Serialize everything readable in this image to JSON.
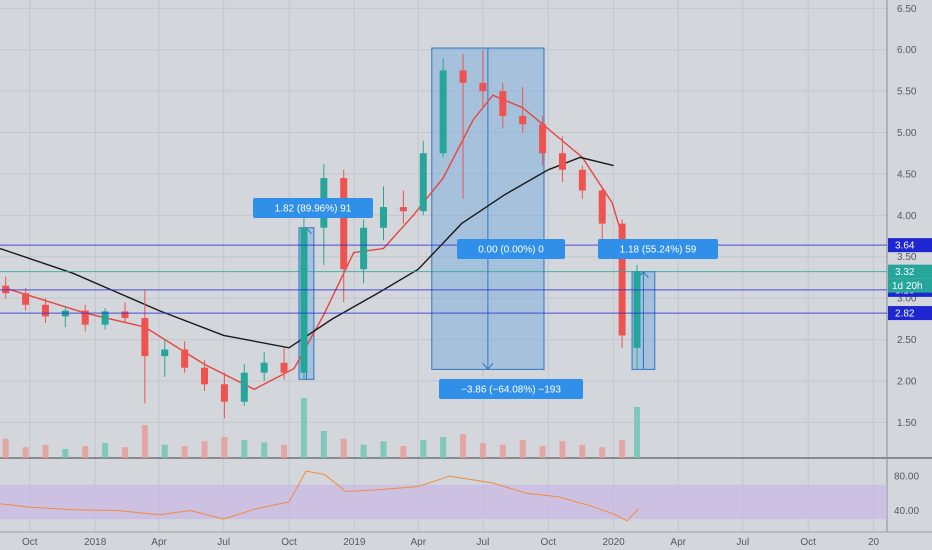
{
  "chart_data": [
    {
      "type": "candlestick",
      "title": "",
      "x": {
        "ticks": [
          "Oct",
          "2018",
          "Apr",
          "Jul",
          "Oct",
          "2019",
          "Apr",
          "Jul",
          "Oct",
          "2020",
          "Apr",
          "Jul",
          "Oct",
          "20"
        ],
        "tick_dates": [
          "2017-10",
          "2018-01",
          "2018-04",
          "2018-07",
          "2018-10",
          "2019-01",
          "2019-04",
          "2019-07",
          "2019-10",
          "2020-01",
          "2020-04",
          "2020-07",
          "2020-10",
          "2021-01"
        ],
        "range": [
          "2017-08-20",
          "2021-01-20"
        ]
      },
      "y": {
        "ticks": [
          "6.50",
          "6.00",
          "5.50",
          "5.00",
          "4.50",
          "4.00",
          "3.50",
          "3.00",
          "2.50",
          "2.00",
          "1.50"
        ],
        "range": [
          1.07,
          6.6
        ]
      },
      "candles": [
        {
          "date": "2017-08-28",
          "o": 3.15,
          "h": 3.26,
          "l": 3.0,
          "c": 3.06
        },
        {
          "date": "2017-09-25",
          "o": 3.06,
          "h": 3.12,
          "l": 2.85,
          "c": 2.92
        },
        {
          "date": "2017-10-23",
          "o": 2.92,
          "h": 3.0,
          "l": 2.7,
          "c": 2.78
        },
        {
          "date": "2017-11-20",
          "o": 2.78,
          "h": 2.9,
          "l": 2.65,
          "c": 2.85
        },
        {
          "date": "2017-12-18",
          "o": 2.85,
          "h": 2.92,
          "l": 2.6,
          "c": 2.68
        },
        {
          "date": "2018-01-15",
          "o": 2.68,
          "h": 2.88,
          "l": 2.62,
          "c": 2.84
        },
        {
          "date": "2018-02-12",
          "o": 2.84,
          "h": 2.95,
          "l": 2.7,
          "c": 2.76
        },
        {
          "date": "2018-03-12",
          "o": 2.76,
          "h": 3.1,
          "l": 1.73,
          "c": 2.3
        },
        {
          "date": "2018-04-09",
          "o": 2.3,
          "h": 2.5,
          "l": 2.05,
          "c": 2.38
        },
        {
          "date": "2018-05-07",
          "o": 2.38,
          "h": 2.48,
          "l": 2.1,
          "c": 2.16
        },
        {
          "date": "2018-06-04",
          "o": 2.16,
          "h": 2.25,
          "l": 1.88,
          "c": 1.96
        },
        {
          "date": "2018-07-02",
          "o": 1.96,
          "h": 2.1,
          "l": 1.55,
          "c": 1.75
        },
        {
          "date": "2018-07-30",
          "o": 1.75,
          "h": 2.2,
          "l": 1.7,
          "c": 2.1
        },
        {
          "date": "2018-08-27",
          "o": 2.1,
          "h": 2.35,
          "l": 2.0,
          "c": 2.22
        },
        {
          "date": "2018-09-24",
          "o": 2.22,
          "h": 2.4,
          "l": 2.02,
          "c": 2.1
        },
        {
          "date": "2018-10-22",
          "o": 2.1,
          "h": 4.1,
          "l": 2.02,
          "c": 3.85
        },
        {
          "date": "2018-11-19",
          "o": 3.85,
          "h": 4.62,
          "l": 3.4,
          "c": 4.45
        },
        {
          "date": "2018-12-17",
          "o": 4.45,
          "h": 4.55,
          "l": 2.95,
          "c": 3.35
        },
        {
          "date": "2019-01-14",
          "o": 3.35,
          "h": 3.95,
          "l": 3.18,
          "c": 3.85
        },
        {
          "date": "2019-02-11",
          "o": 3.85,
          "h": 4.35,
          "l": 3.7,
          "c": 4.1
        },
        {
          "date": "2019-03-11",
          "o": 4.1,
          "h": 4.3,
          "l": 3.9,
          "c": 4.05
        },
        {
          "date": "2019-04-08",
          "o": 4.05,
          "h": 4.9,
          "l": 4.0,
          "c": 4.75
        },
        {
          "date": "2019-05-06",
          "o": 4.75,
          "h": 5.9,
          "l": 4.7,
          "c": 5.75
        },
        {
          "date": "2019-06-03",
          "o": 5.75,
          "h": 5.95,
          "l": 4.2,
          "c": 5.6
        },
        {
          "date": "2019-07-01",
          "o": 5.6,
          "h": 6.0,
          "l": 5.3,
          "c": 5.5
        },
        {
          "date": "2019-07-29",
          "o": 5.5,
          "h": 5.6,
          "l": 5.05,
          "c": 5.2
        },
        {
          "date": "2019-08-26",
          "o": 5.2,
          "h": 5.55,
          "l": 5.0,
          "c": 5.1
        },
        {
          "date": "2019-09-23",
          "o": 5.1,
          "h": 5.2,
          "l": 4.6,
          "c": 4.75
        },
        {
          "date": "2019-10-21",
          "o": 4.75,
          "h": 4.95,
          "l": 4.4,
          "c": 4.55
        },
        {
          "date": "2019-11-18",
          "o": 4.55,
          "h": 4.6,
          "l": 4.2,
          "c": 4.3
        },
        {
          "date": "2019-12-16",
          "o": 4.3,
          "h": 4.35,
          "l": 3.7,
          "c": 3.9
        },
        {
          "date": "2020-01-13",
          "o": 3.9,
          "h": 3.95,
          "l": 2.4,
          "c": 2.55
        },
        {
          "date": "2020-02-03",
          "o": 2.4,
          "h": 3.4,
          "l": 2.15,
          "c": 3.32
        }
      ],
      "volume": [
        {
          "date": "2017-08-28",
          "v": 0.32
        },
        {
          "date": "2017-09-25",
          "v": 0.18
        },
        {
          "date": "2017-10-23",
          "v": 0.22
        },
        {
          "date": "2017-11-20",
          "v": 0.15
        },
        {
          "date": "2017-12-18",
          "v": 0.2
        },
        {
          "date": "2018-01-15",
          "v": 0.25
        },
        {
          "date": "2018-02-12",
          "v": 0.18
        },
        {
          "date": "2018-03-12",
          "v": 0.55
        },
        {
          "date": "2018-04-09",
          "v": 0.22
        },
        {
          "date": "2018-05-07",
          "v": 0.2
        },
        {
          "date": "2018-06-04",
          "v": 0.28
        },
        {
          "date": "2018-07-02",
          "v": 0.35
        },
        {
          "date": "2018-07-30",
          "v": 0.3
        },
        {
          "date": "2018-08-27",
          "v": 0.26
        },
        {
          "date": "2018-09-24",
          "v": 0.22
        },
        {
          "date": "2018-10-22",
          "v": 1.0
        },
        {
          "date": "2018-11-19",
          "v": 0.45
        },
        {
          "date": "2018-12-17",
          "v": 0.32
        },
        {
          "date": "2019-01-14",
          "v": 0.22
        },
        {
          "date": "2019-02-11",
          "v": 0.28
        },
        {
          "date": "2019-03-11",
          "v": 0.2
        },
        {
          "date": "2019-04-08",
          "v": 0.3
        },
        {
          "date": "2019-05-06",
          "v": 0.35
        },
        {
          "date": "2019-06-03",
          "v": 0.4
        },
        {
          "date": "2019-07-01",
          "v": 0.25
        },
        {
          "date": "2019-07-29",
          "v": 0.22
        },
        {
          "date": "2019-08-26",
          "v": 0.3
        },
        {
          "date": "2019-09-23",
          "v": 0.2
        },
        {
          "date": "2019-10-21",
          "v": 0.28
        },
        {
          "date": "2019-11-18",
          "v": 0.22
        },
        {
          "date": "2019-12-16",
          "v": 0.18
        },
        {
          "date": "2020-01-13",
          "v": 0.3
        },
        {
          "date": "2020-02-03",
          "v": 0.85
        }
      ],
      "moving_averages": [
        {
          "color": "#e8453c",
          "points": [
            [
              "2017-08-28",
              3.12
            ],
            [
              "2017-12-18",
              2.82
            ],
            [
              "2018-03-12",
              2.65
            ],
            [
              "2018-06-04",
              2.2
            ],
            [
              "2018-08-13",
              1.9
            ],
            [
              "2018-10-08",
              2.15
            ],
            [
              "2018-11-19",
              2.8
            ],
            [
              "2018-12-31",
              3.55
            ],
            [
              "2019-02-11",
              3.6
            ],
            [
              "2019-03-25",
              4.0
            ],
            [
              "2019-05-06",
              4.45
            ],
            [
              "2019-06-17",
              5.15
            ],
            [
              "2019-07-15",
              5.45
            ],
            [
              "2019-08-26",
              5.3
            ],
            [
              "2019-10-07",
              5.0
            ],
            [
              "2019-11-18",
              4.7
            ],
            [
              "2019-12-30",
              4.15
            ],
            [
              "2020-01-20",
              3.55
            ]
          ]
        },
        {
          "color": "#1a1a1a",
          "points": [
            [
              "2017-08-20",
              3.6
            ],
            [
              "2017-12-01",
              3.3
            ],
            [
              "2018-04-01",
              2.85
            ],
            [
              "2018-07-01",
              2.55
            ],
            [
              "2018-10-01",
              2.4
            ],
            [
              "2018-12-01",
              2.75
            ],
            [
              "2019-02-01",
              3.05
            ],
            [
              "2019-04-01",
              3.35
            ],
            [
              "2019-06-01",
              3.9
            ],
            [
              "2019-08-01",
              4.25
            ],
            [
              "2019-10-01",
              4.55
            ],
            [
              "2019-11-15",
              4.7
            ],
            [
              "2020-01-01",
              4.6
            ]
          ]
        }
      ],
      "horizontal_lines": [
        {
          "value": 3.64,
          "label": "3.64",
          "color": "#2b2bd6",
          "tag_color": "#1d26d0"
        },
        {
          "value": 3.1,
          "label": "3.10",
          "color": "#2b2bd6",
          "tag_color": "#1d26d0"
        },
        {
          "value": 2.82,
          "label": "2.82",
          "color": "#2b2bd6",
          "tag_color": "#1d26d0"
        },
        {
          "value": 3.32,
          "label": "3.32",
          "color": "#26a69a",
          "tag_color": "#26a69a",
          "extra_label": "1d 20h"
        }
      ],
      "measure_boxes": [
        {
          "from": "2018-10-15",
          "to": "2018-11-05",
          "y_low": 2.02,
          "y_high": 3.85,
          "label": "1.82 (89.96%) 91",
          "direction": "up"
        },
        {
          "from": "2019-04-20",
          "to": "2019-09-25",
          "y_low": 2.14,
          "y_high": 6.02,
          "label": "0.00 (0.00%) 0",
          "label2": "−3.86 (−64.08%) −193",
          "direction": "down"
        },
        {
          "from": "2020-01-27",
          "to": "2020-02-28",
          "y_low": 2.14,
          "y_high": 3.32,
          "label": "1.18 (55.24%) 59",
          "direction": "up"
        }
      ]
    },
    {
      "type": "line",
      "title": "",
      "y": {
        "ticks": [
          "80.00",
          "40.00"
        ],
        "range": [
          15,
          100
        ]
      },
      "band": [
        30,
        70
      ],
      "series": [
        {
          "color": "#f28b3c",
          "points": [
            [
              "2017-08-20",
              48
            ],
            [
              "2017-10-01",
              44
            ],
            [
              "2017-12-01",
              41
            ],
            [
              "2018-02-01",
              40
            ],
            [
              "2018-04-01",
              35
            ],
            [
              "2018-05-15",
              40
            ],
            [
              "2018-07-01",
              30
            ],
            [
              "2018-08-15",
              42
            ],
            [
              "2018-10-01",
              50
            ],
            [
              "2018-10-25",
              86
            ],
            [
              "2018-11-20",
              82
            ],
            [
              "2018-12-20",
              62
            ],
            [
              "2019-02-01",
              64
            ],
            [
              "2019-04-01",
              68
            ],
            [
              "2019-05-15",
              80
            ],
            [
              "2019-06-15",
              76
            ],
            [
              "2019-07-15",
              72
            ],
            [
              "2019-09-01",
              60
            ],
            [
              "2019-10-15",
              56
            ],
            [
              "2019-12-01",
              45
            ],
            [
              "2020-01-01",
              36
            ],
            [
              "2020-01-20",
              28
            ],
            [
              "2020-02-05",
              42
            ]
          ]
        }
      ]
    }
  ]
}
